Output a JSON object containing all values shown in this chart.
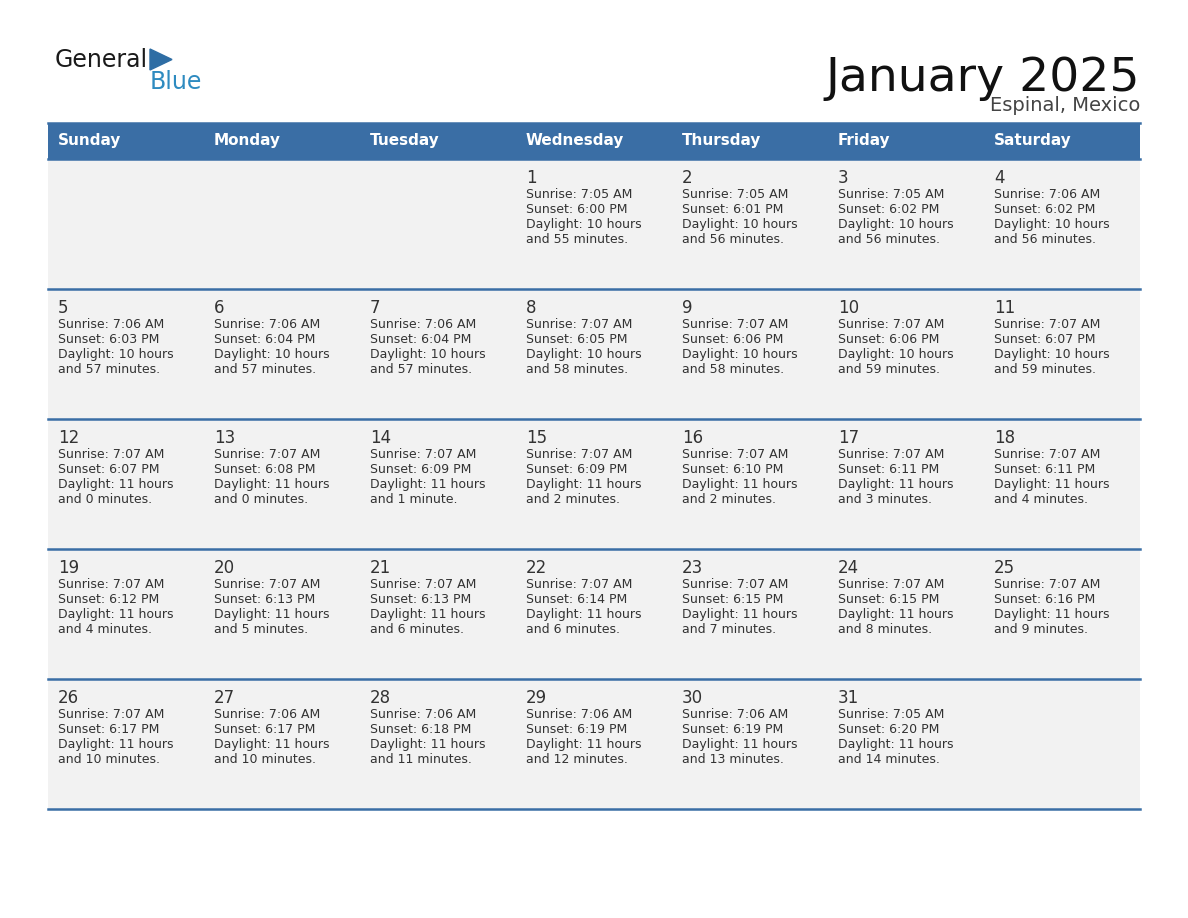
{
  "title": "January 2025",
  "subtitle": "Espinal, Mexico",
  "days_of_week": [
    "Sunday",
    "Monday",
    "Tuesday",
    "Wednesday",
    "Thursday",
    "Friday",
    "Saturday"
  ],
  "header_bg": "#3A6EA5",
  "header_text": "#FFFFFF",
  "cell_bg": "#F2F2F2",
  "cell_border": "#3A6EA5",
  "text_color": "#333333",
  "calendar_data": [
    [
      null,
      null,
      null,
      {
        "day": 1,
        "sunrise": "7:05 AM",
        "sunset": "6:00 PM",
        "daylight": "10 hours and 55 minutes."
      },
      {
        "day": 2,
        "sunrise": "7:05 AM",
        "sunset": "6:01 PM",
        "daylight": "10 hours and 56 minutes."
      },
      {
        "day": 3,
        "sunrise": "7:05 AM",
        "sunset": "6:02 PM",
        "daylight": "10 hours and 56 minutes."
      },
      {
        "day": 4,
        "sunrise": "7:06 AM",
        "sunset": "6:02 PM",
        "daylight": "10 hours and 56 minutes."
      }
    ],
    [
      {
        "day": 5,
        "sunrise": "7:06 AM",
        "sunset": "6:03 PM",
        "daylight": "10 hours and 57 minutes."
      },
      {
        "day": 6,
        "sunrise": "7:06 AM",
        "sunset": "6:04 PM",
        "daylight": "10 hours and 57 minutes."
      },
      {
        "day": 7,
        "sunrise": "7:06 AM",
        "sunset": "6:04 PM",
        "daylight": "10 hours and 57 minutes."
      },
      {
        "day": 8,
        "sunrise": "7:07 AM",
        "sunset": "6:05 PM",
        "daylight": "10 hours and 58 minutes."
      },
      {
        "day": 9,
        "sunrise": "7:07 AM",
        "sunset": "6:06 PM",
        "daylight": "10 hours and 58 minutes."
      },
      {
        "day": 10,
        "sunrise": "7:07 AM",
        "sunset": "6:06 PM",
        "daylight": "10 hours and 59 minutes."
      },
      {
        "day": 11,
        "sunrise": "7:07 AM",
        "sunset": "6:07 PM",
        "daylight": "10 hours and 59 minutes."
      }
    ],
    [
      {
        "day": 12,
        "sunrise": "7:07 AM",
        "sunset": "6:07 PM",
        "daylight": "11 hours and 0 minutes."
      },
      {
        "day": 13,
        "sunrise": "7:07 AM",
        "sunset": "6:08 PM",
        "daylight": "11 hours and 0 minutes."
      },
      {
        "day": 14,
        "sunrise": "7:07 AM",
        "sunset": "6:09 PM",
        "daylight": "11 hours and 1 minute."
      },
      {
        "day": 15,
        "sunrise": "7:07 AM",
        "sunset": "6:09 PM",
        "daylight": "11 hours and 2 minutes."
      },
      {
        "day": 16,
        "sunrise": "7:07 AM",
        "sunset": "6:10 PM",
        "daylight": "11 hours and 2 minutes."
      },
      {
        "day": 17,
        "sunrise": "7:07 AM",
        "sunset": "6:11 PM",
        "daylight": "11 hours and 3 minutes."
      },
      {
        "day": 18,
        "sunrise": "7:07 AM",
        "sunset": "6:11 PM",
        "daylight": "11 hours and 4 minutes."
      }
    ],
    [
      {
        "day": 19,
        "sunrise": "7:07 AM",
        "sunset": "6:12 PM",
        "daylight": "11 hours and 4 minutes."
      },
      {
        "day": 20,
        "sunrise": "7:07 AM",
        "sunset": "6:13 PM",
        "daylight": "11 hours and 5 minutes."
      },
      {
        "day": 21,
        "sunrise": "7:07 AM",
        "sunset": "6:13 PM",
        "daylight": "11 hours and 6 minutes."
      },
      {
        "day": 22,
        "sunrise": "7:07 AM",
        "sunset": "6:14 PM",
        "daylight": "11 hours and 6 minutes."
      },
      {
        "day": 23,
        "sunrise": "7:07 AM",
        "sunset": "6:15 PM",
        "daylight": "11 hours and 7 minutes."
      },
      {
        "day": 24,
        "sunrise": "7:07 AM",
        "sunset": "6:15 PM",
        "daylight": "11 hours and 8 minutes."
      },
      {
        "day": 25,
        "sunrise": "7:07 AM",
        "sunset": "6:16 PM",
        "daylight": "11 hours and 9 minutes."
      }
    ],
    [
      {
        "day": 26,
        "sunrise": "7:07 AM",
        "sunset": "6:17 PM",
        "daylight": "11 hours and 10 minutes."
      },
      {
        "day": 27,
        "sunrise": "7:06 AM",
        "sunset": "6:17 PM",
        "daylight": "11 hours and 10 minutes."
      },
      {
        "day": 28,
        "sunrise": "7:06 AM",
        "sunset": "6:18 PM",
        "daylight": "11 hours and 11 minutes."
      },
      {
        "day": 29,
        "sunrise": "7:06 AM",
        "sunset": "6:19 PM",
        "daylight": "11 hours and 12 minutes."
      },
      {
        "day": 30,
        "sunrise": "7:06 AM",
        "sunset": "6:19 PM",
        "daylight": "11 hours and 13 minutes."
      },
      {
        "day": 31,
        "sunrise": "7:05 AM",
        "sunset": "6:20 PM",
        "daylight": "11 hours and 14 minutes."
      },
      null
    ]
  ]
}
